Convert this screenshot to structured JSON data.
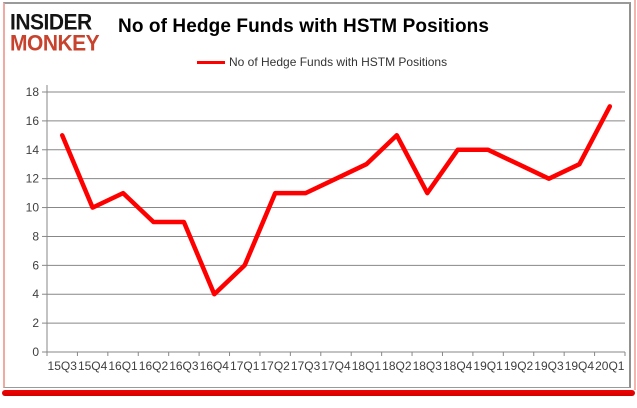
{
  "logo": {
    "line1": "INSIDER",
    "line2": "MONKEY"
  },
  "header": {
    "title": "No of Hedge Funds with HSTM Positions"
  },
  "legend": {
    "label": "No of Hedge Funds with HSTM Positions"
  },
  "colors": {
    "series_line": "#ff0000",
    "grid": "#878787",
    "axis": "#878787",
    "tick_label": "#3f3f3f",
    "logo_black": "#141414",
    "logo_red": "#c8432e",
    "accent_bar_red": "#e60000",
    "frame_gray": "#9a9a9a",
    "frame_pink": "#f2a9a2"
  },
  "chart_data": {
    "type": "line",
    "title": "No of Hedge Funds with HSTM Positions",
    "categories": [
      "15Q3",
      "15Q4",
      "16Q1",
      "16Q2",
      "16Q3",
      "16Q4",
      "17Q1",
      "17Q2",
      "17Q3",
      "17Q4",
      "18Q1",
      "18Q2",
      "18Q3",
      "18Q4",
      "19Q1",
      "19Q2",
      "19Q3",
      "19Q4",
      "20Q1"
    ],
    "series": [
      {
        "name": "No of Hedge Funds with HSTM Positions",
        "color": "#ff0000",
        "values": [
          15,
          10,
          11,
          9,
          9,
          4,
          6,
          11,
          11,
          12,
          13,
          15,
          11,
          14,
          14,
          13,
          12,
          13,
          17
        ]
      }
    ],
    "xlabel": "",
    "ylabel": "",
    "ylim": [
      0,
      18
    ],
    "yticks": [
      0,
      2,
      4,
      6,
      8,
      10,
      12,
      14,
      16,
      18
    ],
    "grid": true,
    "legend_position": "top-center"
  }
}
